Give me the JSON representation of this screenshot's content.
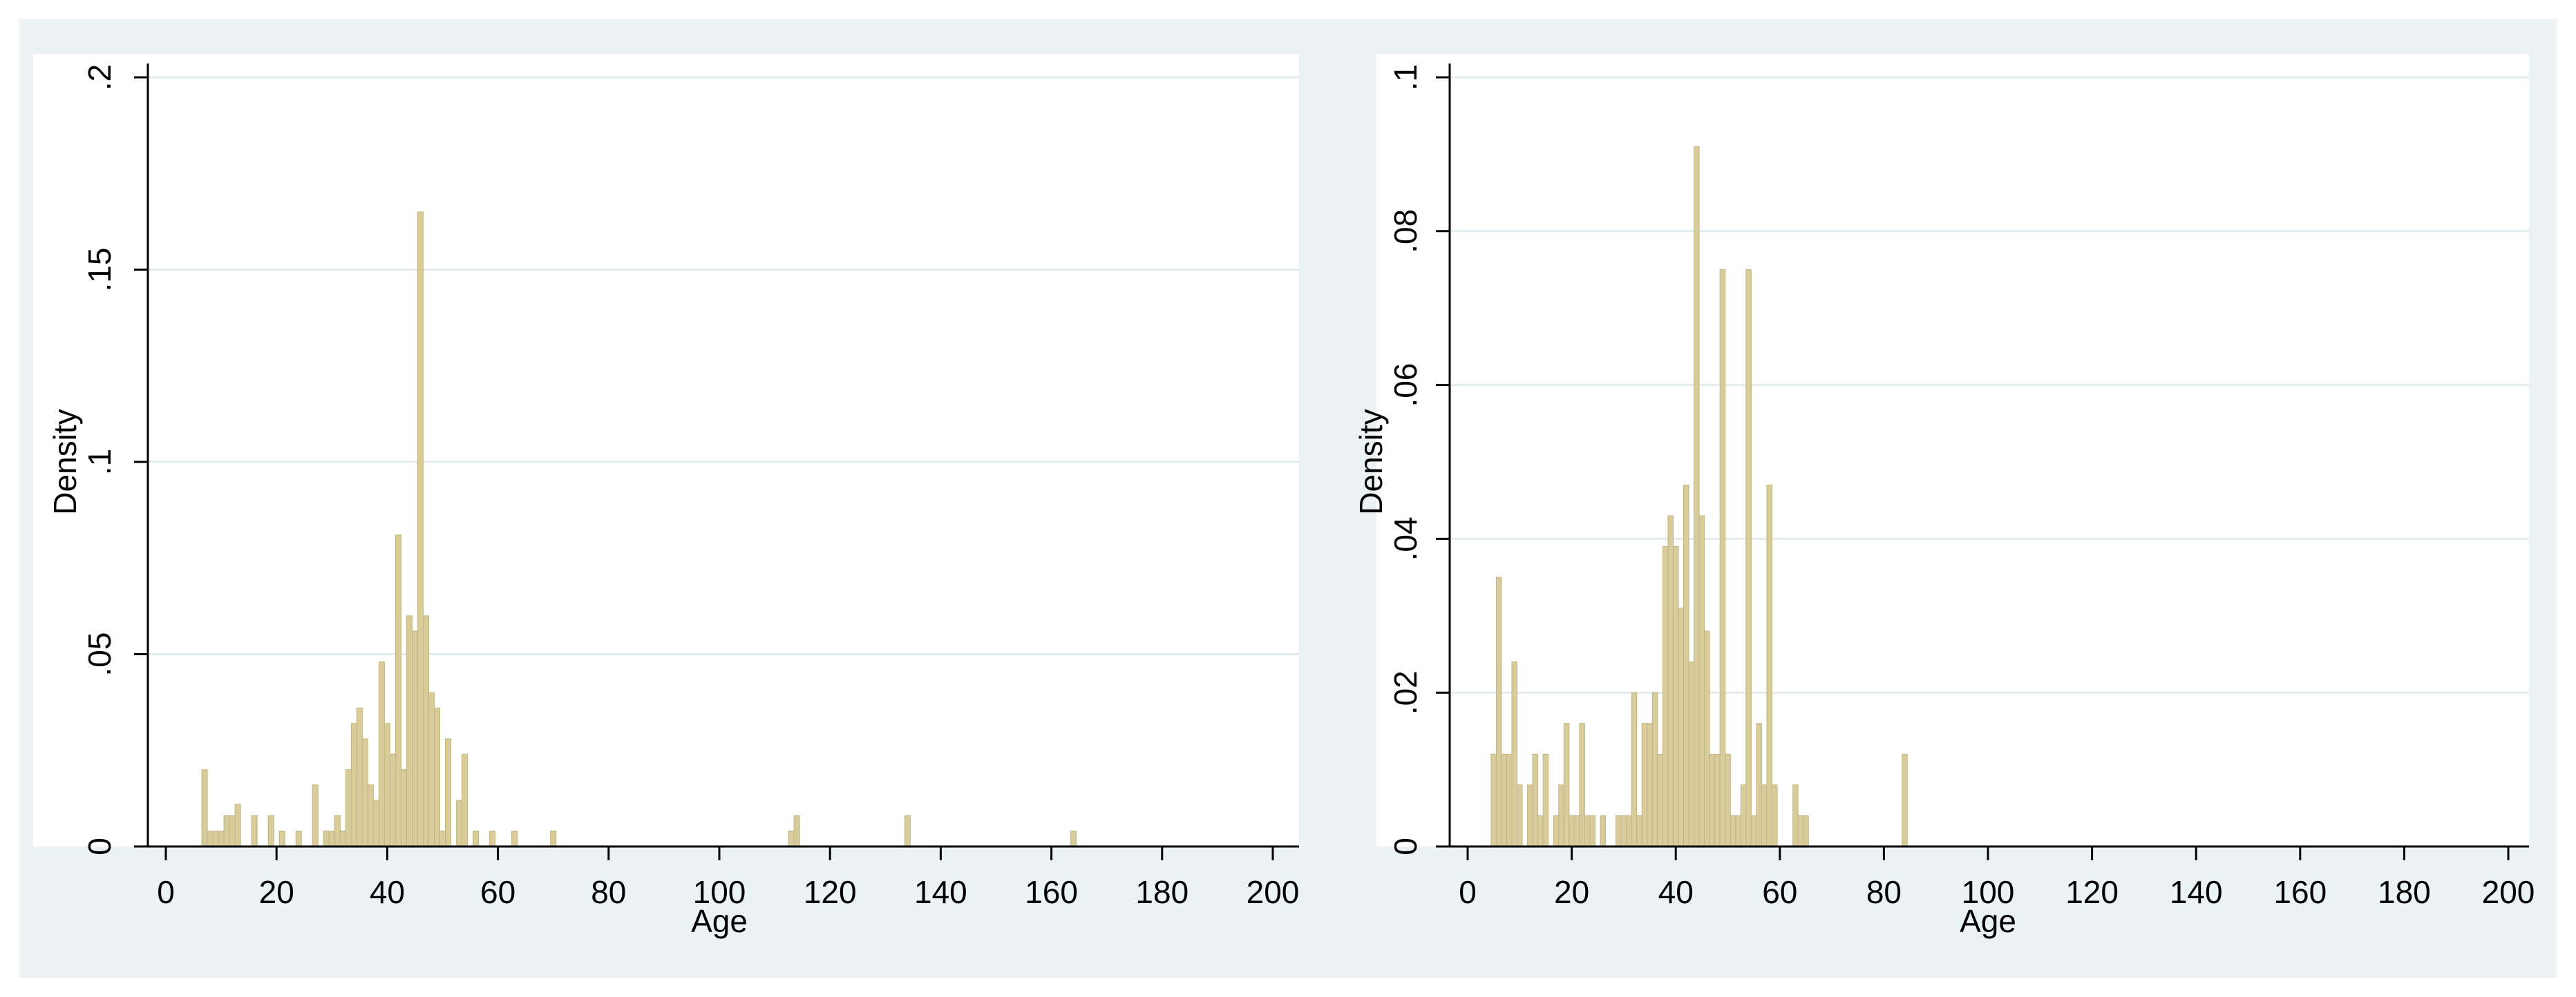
{
  "colors": {
    "outer_background": "#EAF2F3",
    "plot_background": "#FFFFFF",
    "bar_fill": "#D8CC9C",
    "bar_stroke": "#C2B57E",
    "gridline": "#E3ECEE",
    "axis": "#000000"
  },
  "chart_data": [
    {
      "type": "bar",
      "histogram": true,
      "xlabel": "Age",
      "ylabel": "Density",
      "xlim": [
        0,
        200
      ],
      "ylim": [
        0,
        0.2
      ],
      "x_ticks": [
        0,
        20,
        40,
        60,
        80,
        100,
        120,
        140,
        160,
        180,
        200
      ],
      "x_tick_labels": [
        "0",
        "20",
        "40",
        "60",
        "80",
        "100",
        "120",
        "140",
        "160",
        "180",
        "200"
      ],
      "y_ticks": [
        0,
        0.05,
        0.1,
        0.15,
        0.2
      ],
      "y_tick_labels": [
        "0",
        ".05",
        ".1",
        ".15",
        ".2"
      ],
      "bin_width": 1,
      "grid": true,
      "bins": [
        {
          "x": 7,
          "y": 0.02
        },
        {
          "x": 8,
          "y": 0.004
        },
        {
          "x": 9,
          "y": 0.004
        },
        {
          "x": 10,
          "y": 0.004
        },
        {
          "x": 11,
          "y": 0.008
        },
        {
          "x": 12,
          "y": 0.008
        },
        {
          "x": 13,
          "y": 0.011
        },
        {
          "x": 16,
          "y": 0.008
        },
        {
          "x": 19,
          "y": 0.008
        },
        {
          "x": 21,
          "y": 0.004
        },
        {
          "x": 24,
          "y": 0.004
        },
        {
          "x": 27,
          "y": 0.016
        },
        {
          "x": 29,
          "y": 0.004
        },
        {
          "x": 30,
          "y": 0.004
        },
        {
          "x": 31,
          "y": 0.008
        },
        {
          "x": 32,
          "y": 0.004
        },
        {
          "x": 33,
          "y": 0.02
        },
        {
          "x": 34,
          "y": 0.032
        },
        {
          "x": 35,
          "y": 0.036
        },
        {
          "x": 36,
          "y": 0.028
        },
        {
          "x": 37,
          "y": 0.016
        },
        {
          "x": 38,
          "y": 0.012
        },
        {
          "x": 39,
          "y": 0.048
        },
        {
          "x": 40,
          "y": 0.032
        },
        {
          "x": 41,
          "y": 0.024
        },
        {
          "x": 42,
          "y": 0.081
        },
        {
          "x": 43,
          "y": 0.02
        },
        {
          "x": 44,
          "y": 0.06
        },
        {
          "x": 45,
          "y": 0.056
        },
        {
          "x": 46,
          "y": 0.165
        },
        {
          "x": 47,
          "y": 0.06
        },
        {
          "x": 48,
          "y": 0.04
        },
        {
          "x": 49,
          "y": 0.036
        },
        {
          "x": 50,
          "y": 0.004
        },
        {
          "x": 51,
          "y": 0.028
        },
        {
          "x": 53,
          "y": 0.012
        },
        {
          "x": 54,
          "y": 0.024
        },
        {
          "x": 56,
          "y": 0.004
        },
        {
          "x": 59,
          "y": 0.004
        },
        {
          "x": 63,
          "y": 0.004
        },
        {
          "x": 70,
          "y": 0.004
        },
        {
          "x": 113,
          "y": 0.004
        },
        {
          "x": 114,
          "y": 0.008
        },
        {
          "x": 134,
          "y": 0.008
        },
        {
          "x": 164,
          "y": 0.004
        }
      ]
    },
    {
      "type": "bar",
      "histogram": true,
      "xlabel": "Age",
      "ylabel": "Density",
      "xlim": [
        0,
        200
      ],
      "ylim": [
        0,
        0.1
      ],
      "x_ticks": [
        0,
        20,
        40,
        60,
        80,
        100,
        120,
        140,
        160,
        180,
        200
      ],
      "x_tick_labels": [
        "0",
        "20",
        "40",
        "60",
        "80",
        "100",
        "120",
        "140",
        "160",
        "180",
        "200"
      ],
      "y_ticks": [
        0,
        0.02,
        0.04,
        0.06,
        0.08,
        0.1
      ],
      "y_tick_labels": [
        "0",
        ".02",
        ".04",
        ".06",
        ".08",
        ".1"
      ],
      "bin_width": 1,
      "grid": true,
      "bins": [
        {
          "x": 5,
          "y": 0.012
        },
        {
          "x": 6,
          "y": 0.035
        },
        {
          "x": 7,
          "y": 0.012
        },
        {
          "x": 8,
          "y": 0.012
        },
        {
          "x": 9,
          "y": 0.024
        },
        {
          "x": 10,
          "y": 0.008
        },
        {
          "x": 12,
          "y": 0.008
        },
        {
          "x": 13,
          "y": 0.012
        },
        {
          "x": 14,
          "y": 0.004
        },
        {
          "x": 15,
          "y": 0.012
        },
        {
          "x": 17,
          "y": 0.004
        },
        {
          "x": 18,
          "y": 0.008
        },
        {
          "x": 19,
          "y": 0.016
        },
        {
          "x": 20,
          "y": 0.004
        },
        {
          "x": 21,
          "y": 0.004
        },
        {
          "x": 22,
          "y": 0.016
        },
        {
          "x": 23,
          "y": 0.004
        },
        {
          "x": 24,
          "y": 0.004
        },
        {
          "x": 26,
          "y": 0.004
        },
        {
          "x": 29,
          "y": 0.004
        },
        {
          "x": 30,
          "y": 0.004
        },
        {
          "x": 31,
          "y": 0.004
        },
        {
          "x": 32,
          "y": 0.02
        },
        {
          "x": 33,
          "y": 0.004
        },
        {
          "x": 34,
          "y": 0.016
        },
        {
          "x": 35,
          "y": 0.016
        },
        {
          "x": 36,
          "y": 0.02
        },
        {
          "x": 37,
          "y": 0.012
        },
        {
          "x": 38,
          "y": 0.039
        },
        {
          "x": 39,
          "y": 0.043
        },
        {
          "x": 40,
          "y": 0.039
        },
        {
          "x": 41,
          "y": 0.031
        },
        {
          "x": 42,
          "y": 0.047
        },
        {
          "x": 43,
          "y": 0.024
        },
        {
          "x": 44,
          "y": 0.091
        },
        {
          "x": 45,
          "y": 0.043
        },
        {
          "x": 46,
          "y": 0.028
        },
        {
          "x": 47,
          "y": 0.012
        },
        {
          "x": 48,
          "y": 0.012
        },
        {
          "x": 49,
          "y": 0.075
        },
        {
          "x": 50,
          "y": 0.012
        },
        {
          "x": 51,
          "y": 0.004
        },
        {
          "x": 52,
          "y": 0.004
        },
        {
          "x": 53,
          "y": 0.008
        },
        {
          "x": 54,
          "y": 0.075
        },
        {
          "x": 55,
          "y": 0.004
        },
        {
          "x": 56,
          "y": 0.016
        },
        {
          "x": 57,
          "y": 0.008
        },
        {
          "x": 58,
          "y": 0.047
        },
        {
          "x": 59,
          "y": 0.008
        },
        {
          "x": 63,
          "y": 0.008
        },
        {
          "x": 64,
          "y": 0.004
        },
        {
          "x": 65,
          "y": 0.004
        },
        {
          "x": 84,
          "y": 0.012
        }
      ]
    }
  ]
}
